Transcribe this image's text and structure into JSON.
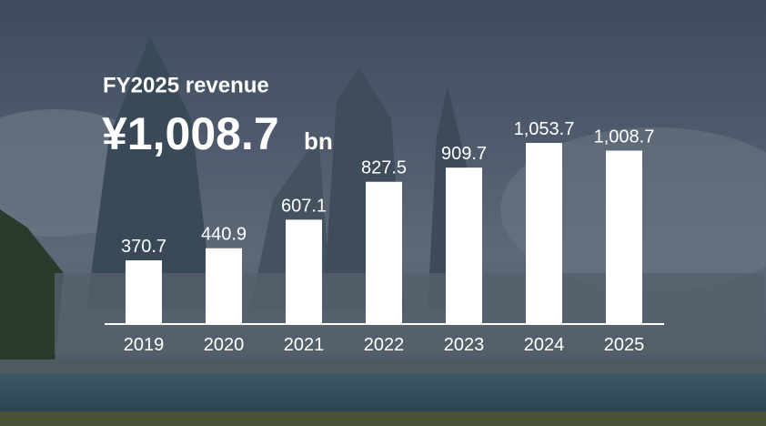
{
  "chart_data": {
    "type": "bar",
    "title": "FY2025 revenue",
    "headline": "¥1,008.7",
    "unit": "bn",
    "categories": [
      "2019",
      "2020",
      "2021",
      "2022",
      "2023",
      "2024",
      "2025"
    ],
    "values": [
      370.7,
      440.9,
      607.1,
      827.5,
      909.7,
      1053.7,
      1008.7
    ],
    "value_labels": [
      "370.7",
      "440.9",
      "607.1",
      "827.5",
      "909.7",
      "1,053.7",
      "1,008.7"
    ],
    "color": "#ffffff"
  }
}
